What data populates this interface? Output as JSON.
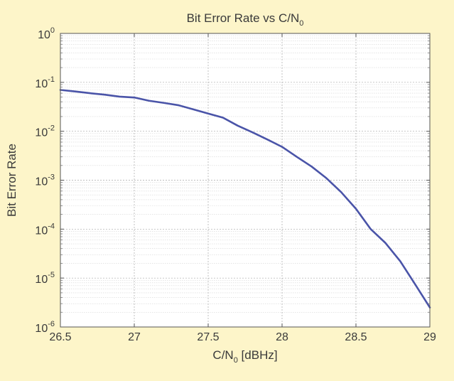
{
  "colors": {
    "page_background": "#fdf5c9",
    "plot_background": "#ffffff",
    "grid_major": "#a9a9a9",
    "grid_minor": "#d6d6d6",
    "line": "#4a54a8",
    "text": "#3a3a3a"
  },
  "chart_data": {
    "type": "line",
    "title": "Bit Error Rate vs C/N₀",
    "title_main": "Bit Error Rate vs C/N",
    "title_sub": "0",
    "xlabel": "C/N₀ [dBHz]",
    "xlabel_main": "C/N",
    "xlabel_sub": "0",
    "xlabel_tail": " [dBHz]",
    "ylabel": "Bit Error Rate",
    "xlim": [
      26.5,
      29
    ],
    "ylim": [
      1e-06,
      1
    ],
    "yscale": "log",
    "grid": true,
    "minor_grid": true,
    "x_ticks": [
      26.5,
      27,
      27.5,
      28,
      28.5,
      29
    ],
    "x_tick_labels": [
      "26.5",
      "27",
      "27.5",
      "28",
      "28.5",
      "29"
    ],
    "y_ticks": [
      {
        "base": "10",
        "exp": "0",
        "value": 1
      },
      {
        "base": "10",
        "exp": "-1",
        "value": 0.1
      },
      {
        "base": "10",
        "exp": "-2",
        "value": 0.01
      },
      {
        "base": "10",
        "exp": "-3",
        "value": 0.001
      },
      {
        "base": "10",
        "exp": "-4",
        "value": 0.0001
      },
      {
        "base": "10",
        "exp": "-5",
        "value": 1e-05
      },
      {
        "base": "10",
        "exp": "-6",
        "value": 1e-06
      }
    ],
    "series": [
      {
        "x": [
          26.5,
          26.6,
          26.7,
          26.8,
          26.9,
          27.0,
          27.1,
          27.2,
          27.3,
          27.4,
          27.5,
          27.6,
          27.7,
          27.8,
          27.9,
          28.0,
          28.1,
          28.2,
          28.3,
          28.4,
          28.5,
          28.6,
          28.7,
          28.8,
          28.9,
          29.0
        ],
        "y": [
          0.07,
          0.065,
          0.06,
          0.056,
          0.051,
          0.049,
          0.042,
          0.038,
          0.034,
          0.028,
          0.023,
          0.019,
          0.013,
          0.0095,
          0.0068,
          0.0048,
          0.003,
          0.0019,
          0.0011,
          0.00057,
          0.00026,
          0.0001,
          5.2e-05,
          2.2e-05,
          7.5e-06,
          2.5e-06
        ]
      }
    ]
  }
}
